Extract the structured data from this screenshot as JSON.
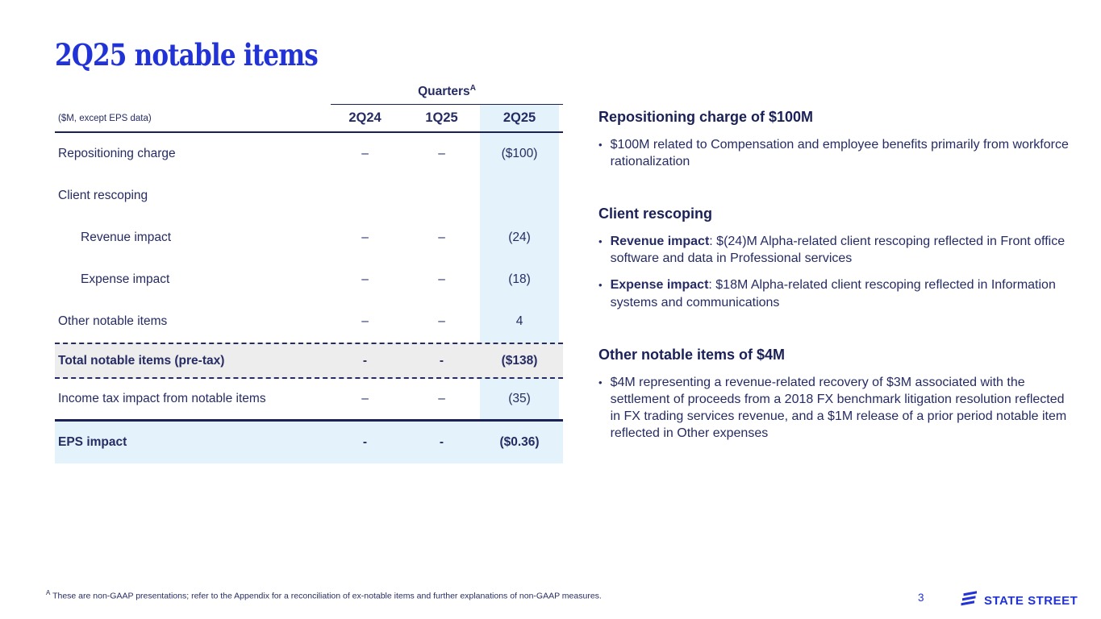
{
  "slide": {
    "title": "2Q25 notable items",
    "page_number": "3",
    "footnote_marker": "A",
    "footnote_text": "These are non-GAAP presentations; refer to the Appendix for a reconciliation of ex-notable items and further explanations of non-GAAP measures.",
    "logo_text": "STATE STREET"
  },
  "table": {
    "group_header": "Quarters",
    "group_header_sup": "A",
    "unit_label": "($M, except EPS data)",
    "columns": [
      "2Q24",
      "1Q25",
      "2Q25"
    ],
    "highlight_column": "2Q25",
    "rows": [
      {
        "label": "Repositioning charge",
        "values": [
          "–",
          "–",
          "($100)"
        ],
        "indent": false,
        "bold": false,
        "type": "normal"
      },
      {
        "label": "Client rescoping",
        "values": [
          "",
          "",
          ""
        ],
        "indent": false,
        "bold": false,
        "type": "normal"
      },
      {
        "label": "Revenue impact",
        "values": [
          "–",
          "–",
          "(24)"
        ],
        "indent": true,
        "bold": false,
        "type": "normal"
      },
      {
        "label": "Expense impact",
        "values": [
          "–",
          "–",
          "(18)"
        ],
        "indent": true,
        "bold": false,
        "type": "normal"
      },
      {
        "label": "Other notable items",
        "values": [
          "–",
          "–",
          "4"
        ],
        "indent": false,
        "bold": false,
        "type": "normal"
      },
      {
        "label": "Total notable items (pre-tax)",
        "values": [
          "-",
          "-",
          "($138)"
        ],
        "indent": false,
        "bold": true,
        "type": "total"
      },
      {
        "label": "Income tax impact from notable items",
        "values": [
          "–",
          "–",
          "(35)"
        ],
        "indent": false,
        "bold": false,
        "type": "plain2"
      },
      {
        "label": "EPS impact",
        "values": [
          "-",
          "-",
          "($0.36)"
        ],
        "indent": false,
        "bold": true,
        "type": "eps"
      }
    ]
  },
  "sections": [
    {
      "heading": "Repositioning charge of $100M",
      "bullets": [
        {
          "lead": "",
          "text": "$100M related to Compensation and employee benefits primarily from workforce rationalization"
        }
      ]
    },
    {
      "heading": "Client rescoping",
      "bullets": [
        {
          "lead": "Revenue impact",
          "text": ": $(24)M Alpha-related client rescoping reflected in Front office software and data in Professional services"
        },
        {
          "lead": "Expense impact",
          "text": ": $18M Alpha-related client rescoping reflected in Information systems and communications"
        }
      ]
    },
    {
      "heading": "Other notable items of $4M",
      "bullets": [
        {
          "lead": "",
          "text": "$4M representing a revenue-related recovery of $3M associated with the settlement of proceeds from a 2018 FX benchmark litigation resolution reflected in FX trading services revenue, and a $1M release of a prior period notable item reflected in Other expenses"
        }
      ]
    }
  ],
  "icons": {
    "logo_glyph": "state-street-s-icon",
    "bullet_glyph": "•"
  },
  "colors": {
    "accent_blue": "#2132d6",
    "navy_text": "#262c63",
    "line_navy": "#1b2157",
    "highlight_blue": "#e4f2fc",
    "total_gray": "#ededed"
  }
}
